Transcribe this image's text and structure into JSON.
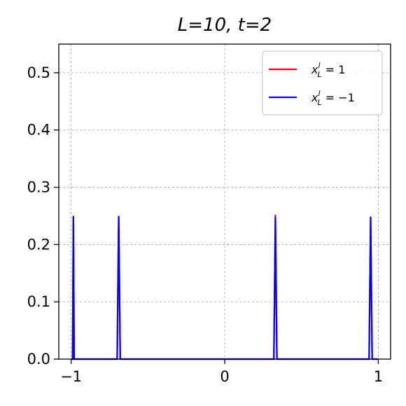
{
  "chart_data": {
    "type": "line",
    "title": "L=10, t=2",
    "xlabel": "",
    "ylabel": "",
    "xlim": [
      -1.08,
      1.08
    ],
    "ylim": [
      0,
      0.55
    ],
    "xticks": [
      -1,
      0,
      1
    ],
    "xtick_labels": [
      "−1",
      "0",
      "1"
    ],
    "yticks": [
      0.0,
      0.1,
      0.2,
      0.3,
      0.4,
      0.5
    ],
    "ytick_labels": [
      "0.0",
      "0.1",
      "0.2",
      "0.3",
      "0.4",
      "0.5"
    ],
    "grid": true,
    "legend_position": "top-right",
    "series": [
      {
        "name": "x_L^l = 1",
        "legend_main": "x",
        "legend_sub": "L",
        "legend_sup": "l",
        "legend_rest": " = 1",
        "color": "#ff0000",
        "x": [
          -1.0,
          -0.99,
          -0.985,
          -0.98,
          -0.97,
          -0.71,
          -0.7,
          -0.69,
          -0.68,
          0.3,
          0.32,
          0.33,
          0.34,
          0.93,
          0.94,
          0.95,
          0.96,
          1.0
        ],
        "y": [
          0.0,
          0.0,
          0.25,
          0.0,
          0.0,
          0.0,
          0.0,
          0.25,
          0.0,
          0.0,
          0.0,
          0.252,
          0.0,
          0.0,
          0.0,
          0.249,
          0.0,
          0.0
        ]
      },
      {
        "name": "x_L^l = -1",
        "legend_main": "x",
        "legend_sub": "L",
        "legend_sup": "l",
        "legend_rest": " = −1",
        "color": "#0000ff",
        "x": [
          -1.0,
          -0.99,
          -0.985,
          -0.98,
          -0.97,
          -0.71,
          -0.7,
          -0.69,
          -0.68,
          0.3,
          0.32,
          0.33,
          0.34,
          0.93,
          0.94,
          0.95,
          0.96,
          1.0
        ],
        "y": [
          0.0,
          0.0,
          0.25,
          0.0,
          0.0,
          0.0,
          0.0,
          0.25,
          0.0,
          0.0,
          0.0,
          0.248,
          0.0,
          0.0,
          0.0,
          0.248,
          0.0,
          0.0
        ]
      }
    ]
  }
}
